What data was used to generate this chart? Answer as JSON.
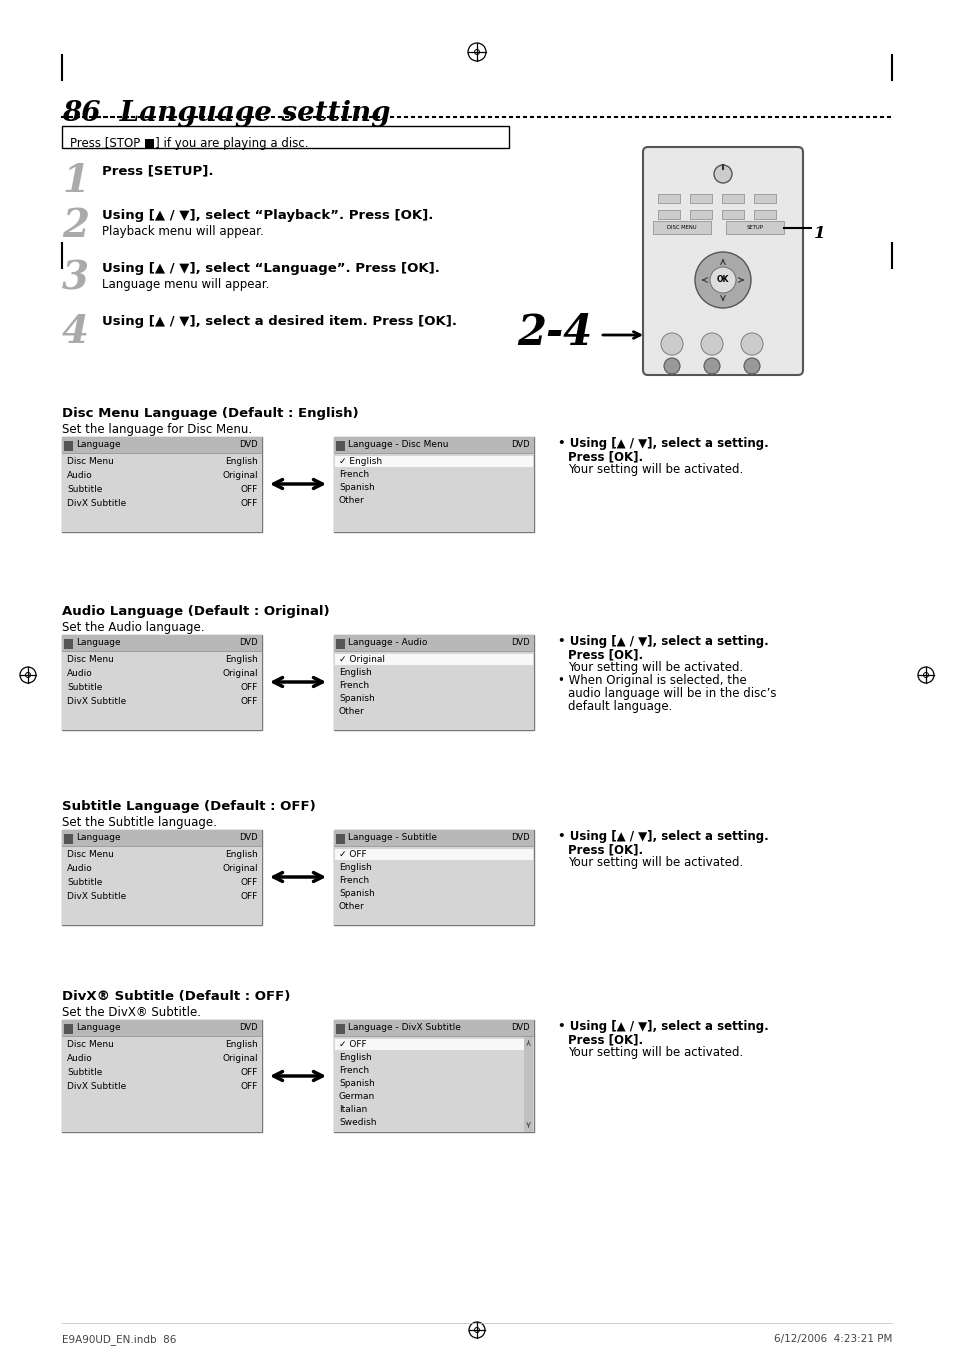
{
  "page_title": "86  Language setting",
  "bg_color": "#ffffff",
  "stop_box_text": "Press [STOP ■] if you are playing a disc.",
  "steps": [
    {
      "num": "1",
      "bold": "Press [SETUP].",
      "normal": ""
    },
    {
      "num": "2",
      "bold": "Using [▲ / ▼], select “Playback”. Press [OK].",
      "normal": "Playback menu will appear."
    },
    {
      "num": "3",
      "bold": "Using [▲ / ▼], select “Language”. Press [OK].",
      "normal": "Language menu will appear."
    },
    {
      "num": "4",
      "bold": "Using [▲ / ▼], select a desired item. Press [OK].",
      "normal": ""
    }
  ],
  "sections": [
    {
      "title": "Disc Menu Language (Default : English)",
      "subtitle": "Set the language for Disc Menu.",
      "left_panel_title": "Language",
      "left_panel_items": [
        [
          "Disc Menu",
          "English"
        ],
        [
          "Audio",
          "Original"
        ],
        [
          "Subtitle",
          "OFF"
        ],
        [
          "DivX Subtitle",
          "OFF"
        ]
      ],
      "right_panel_title": "Language - Disc Menu",
      "right_panel_items": [
        [
          "✓ English",
          true
        ],
        [
          "French",
          false
        ],
        [
          "Spanish",
          false
        ],
        [
          "Other",
          false
        ]
      ],
      "has_scroll": false,
      "note_lines": [
        [
          "• Using [▲ / ▼], select a setting.",
          true
        ],
        [
          "Press [OK].",
          true
        ],
        [
          "Your setting will be activated.",
          false
        ]
      ]
    },
    {
      "title": "Audio Language (Default : Original)",
      "subtitle": "Set the Audio language.",
      "left_panel_title": "Language",
      "left_panel_items": [
        [
          "Disc Menu",
          "English"
        ],
        [
          "Audio",
          "Original"
        ],
        [
          "Subtitle",
          "OFF"
        ],
        [
          "DivX Subtitle",
          "OFF"
        ]
      ],
      "right_panel_title": "Language - Audio",
      "right_panel_items": [
        [
          "✓ Original",
          true
        ],
        [
          "English",
          false
        ],
        [
          "French",
          false
        ],
        [
          "Spanish",
          false
        ],
        [
          "Other",
          false
        ]
      ],
      "has_scroll": false,
      "note_lines": [
        [
          "• Using [▲ / ▼], select a setting.",
          true
        ],
        [
          "Press [OK].",
          true
        ],
        [
          "Your setting will be activated.",
          false
        ],
        [
          "• When Original is selected, the",
          false
        ],
        [
          "audio language will be in the disc’s",
          false
        ],
        [
          "default language.",
          false
        ]
      ]
    },
    {
      "title": "Subtitle Language (Default : OFF)",
      "subtitle": "Set the Subtitle language.",
      "left_panel_title": "Language",
      "left_panel_items": [
        [
          "Disc Menu",
          "English"
        ],
        [
          "Audio",
          "Original"
        ],
        [
          "Subtitle",
          "OFF"
        ],
        [
          "DivX Subtitle",
          "OFF"
        ]
      ],
      "right_panel_title": "Language - Subtitle",
      "right_panel_items": [
        [
          "✓ OFF",
          true
        ],
        [
          "English",
          false
        ],
        [
          "French",
          false
        ],
        [
          "Spanish",
          false
        ],
        [
          "Other",
          false
        ]
      ],
      "has_scroll": false,
      "note_lines": [
        [
          "• Using [▲ / ▼], select a setting.",
          true
        ],
        [
          "Press [OK].",
          true
        ],
        [
          "Your setting will be activated.",
          false
        ]
      ]
    },
    {
      "title": "DivX® Subtitle (Default : OFF)",
      "subtitle": "Set the DivX® Subtitle.",
      "left_panel_title": "Language",
      "left_panel_items": [
        [
          "Disc Menu",
          "English"
        ],
        [
          "Audio",
          "Original"
        ],
        [
          "Subtitle",
          "OFF"
        ],
        [
          "DivX Subtitle",
          "OFF"
        ]
      ],
      "right_panel_title": "Language - DivX Subtitle",
      "right_panel_items": [
        [
          "✓ OFF",
          true
        ],
        [
          "English",
          false
        ],
        [
          "French",
          false
        ],
        [
          "Spanish",
          false
        ],
        [
          "German",
          false
        ],
        [
          "Italian",
          false
        ],
        [
          "Swedish",
          false
        ]
      ],
      "has_scroll": true,
      "note_lines": [
        [
          "• Using [▲ / ▼], select a setting.",
          true
        ],
        [
          "Press [OK].",
          true
        ],
        [
          "Your setting will be activated.",
          false
        ]
      ]
    }
  ],
  "footer_left": "E9A90UD_EN.indb  86",
  "footer_right": "6/12/2006  4:23:21 PM"
}
